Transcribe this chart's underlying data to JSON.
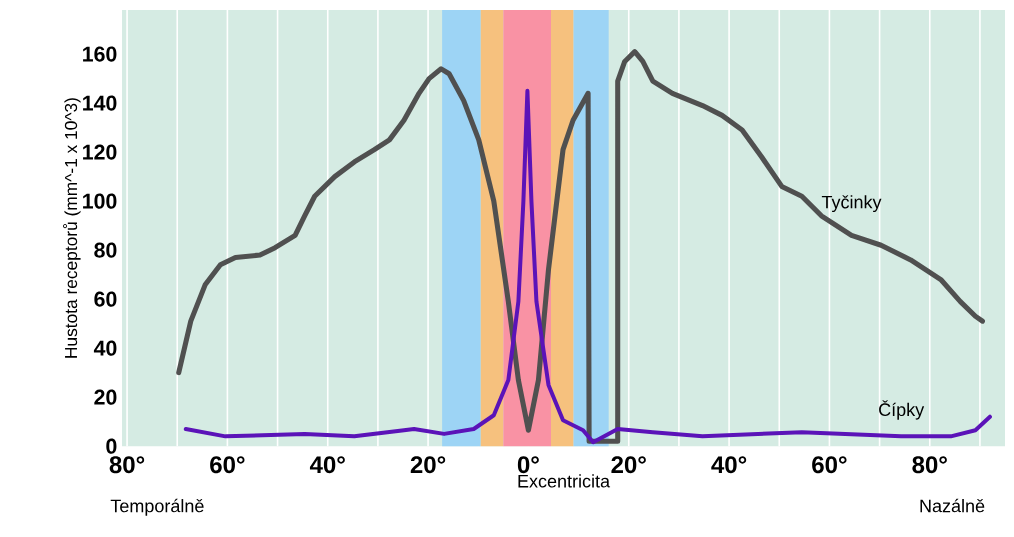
{
  "chart_data": {
    "type": "line",
    "xlabel": "Excentricita",
    "ylabel": "Hustota receptorů (mm^-1 x 10^3)",
    "xlim": [
      -81,
      95
    ],
    "ylim": [
      0,
      178
    ],
    "xticks": [
      {
        "value": -80,
        "label": "80°"
      },
      {
        "value": -70,
        "label": null
      },
      {
        "value": -60,
        "label": "60°"
      },
      {
        "value": -50,
        "label": null
      },
      {
        "value": -40,
        "label": "40°"
      },
      {
        "value": -30,
        "label": null
      },
      {
        "value": -20,
        "label": "20°"
      },
      {
        "value": -10,
        "label": null
      },
      {
        "value": 0,
        "label": "0°"
      },
      {
        "value": 10,
        "label": null
      },
      {
        "value": 20,
        "label": "20°"
      },
      {
        "value": 30,
        "label": null
      },
      {
        "value": 40,
        "label": "40°"
      },
      {
        "value": 50,
        "label": null
      },
      {
        "value": 60,
        "label": "60°"
      },
      {
        "value": 70,
        "label": null
      },
      {
        "value": 80,
        "label": "80°"
      },
      {
        "value": 90,
        "label": null
      }
    ],
    "yticks": [
      0,
      20,
      40,
      60,
      80,
      100,
      120,
      140,
      160
    ],
    "grid": "x",
    "marker": "none",
    "line_style": "solid",
    "bands": [
      {
        "axis": "x",
        "from": -17.2,
        "to": -9.5,
        "color": "#9dd4f5"
      },
      {
        "axis": "x",
        "from": -9.5,
        "to": -5,
        "color": "#f6c17e"
      },
      {
        "axis": "x",
        "from": -5,
        "to": 4.5,
        "color": "#f992a4"
      },
      {
        "axis": "x",
        "from": 4.5,
        "to": 9,
        "color": "#f6c17e"
      },
      {
        "axis": "x",
        "from": 9,
        "to": 16,
        "color": "#9dd4f5"
      }
    ],
    "annotations": [
      "Temporálně",
      "Nazálně"
    ],
    "series": [
      {
        "name": "Tyčinky",
        "color": "#505050",
        "x": [
          -69.7,
          -67.3,
          -64.4,
          -61.4,
          -58.4,
          -53.5,
          -50.5,
          -46.5,
          -44.6,
          -42.6,
          -38.6,
          -34.7,
          -30.7,
          -27.7,
          -24.8,
          -21.8,
          -19.8,
          -17.4,
          -15.8,
          -12.9,
          -9.9,
          -6.9,
          -4,
          -2,
          0,
          2,
          4,
          6.9,
          8.9,
          11.9,
          12.1,
          17.8,
          17.8,
          19.2,
          21.2,
          22.8,
          24.8,
          28.7,
          34.7,
          38.6,
          42.6,
          46.5,
          50.5,
          54.5,
          58.4,
          64.4,
          70.3,
          76.2,
          82.2,
          86.1,
          89.1,
          90.5
        ],
        "values": [
          30,
          51,
          66,
          74,
          77,
          78,
          81,
          86,
          94,
          102,
          110,
          116,
          121,
          125,
          133,
          144,
          150,
          154,
          152,
          141,
          125,
          100,
          59,
          27,
          6.5,
          27,
          72,
          121,
          133,
          144,
          2,
          2,
          149,
          157,
          161,
          157,
          149,
          144,
          139,
          135,
          129,
          118,
          106,
          102,
          94,
          86,
          82,
          76,
          68,
          59,
          53,
          51
        ]
      },
      {
        "name": "Čípky",
        "color": "#5b13b8",
        "x": [
          -68.3,
          -60.4,
          -44.6,
          -34.7,
          -24.8,
          -22.8,
          -16.8,
          -10.9,
          -6.9,
          -4,
          -2,
          -1,
          -0.2,
          0.6,
          1.6,
          4,
          6.9,
          10.9,
          12.9,
          17.8,
          24.8,
          34.7,
          54.5,
          74.3,
          84.2,
          89.1,
          92
        ],
        "values": [
          7,
          4,
          5,
          4,
          6.5,
          7,
          5,
          7,
          12.6,
          27,
          59,
          100,
          145,
          100,
          59,
          25,
          10.6,
          6.5,
          1.6,
          7,
          5.7,
          4,
          5.7,
          4,
          4,
          6.5,
          12
        ]
      }
    ]
  }
}
